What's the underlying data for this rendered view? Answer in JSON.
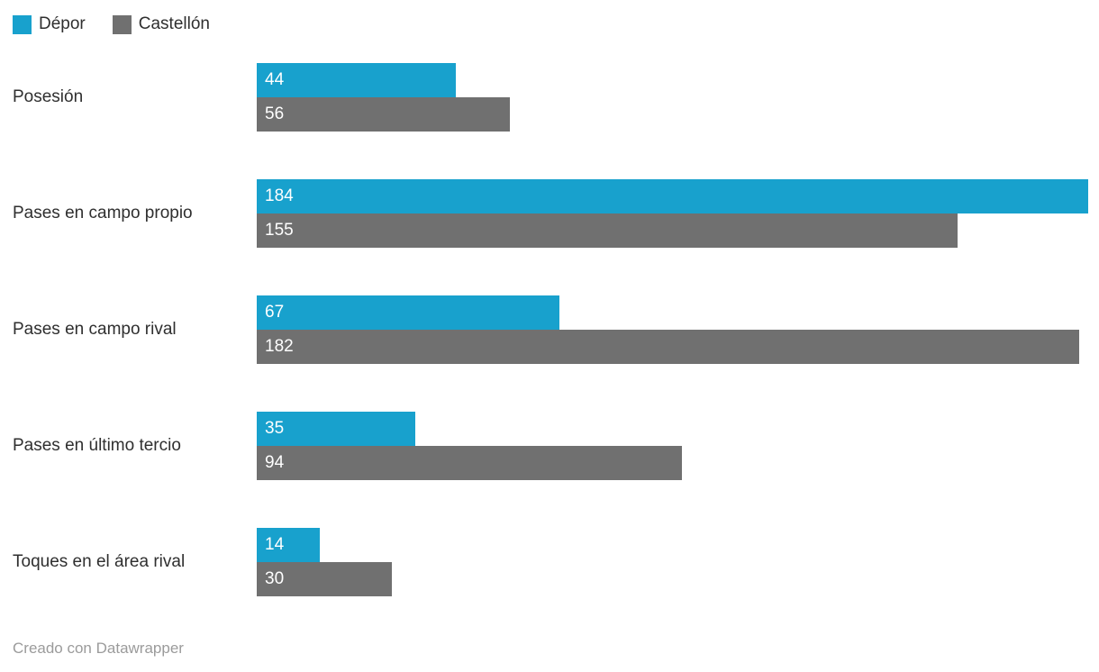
{
  "legend": {
    "items": [
      {
        "label": "Dépor",
        "color": "#18a1cd"
      },
      {
        "label": "Castellón",
        "color": "#707070"
      }
    ]
  },
  "footer": {
    "text": "Creado con Datawrapper"
  },
  "chart_data": {
    "type": "bar",
    "orientation": "horizontal",
    "title": "",
    "xlabel": "",
    "ylabel": "",
    "max_value": 184,
    "grid": false,
    "legend_position": "top-left",
    "value_labels": "inside-start",
    "categories": [
      "Posesión",
      "Pases en campo propio",
      "Pases en campo rival",
      "Pases en último tercio",
      "Toques en el área rival"
    ],
    "series": [
      {
        "name": "Dépor",
        "color": "#18a1cd",
        "values": [
          44,
          184,
          67,
          35,
          14
        ]
      },
      {
        "name": "Castellón",
        "color": "#707070",
        "values": [
          56,
          155,
          182,
          94,
          30
        ]
      }
    ]
  }
}
